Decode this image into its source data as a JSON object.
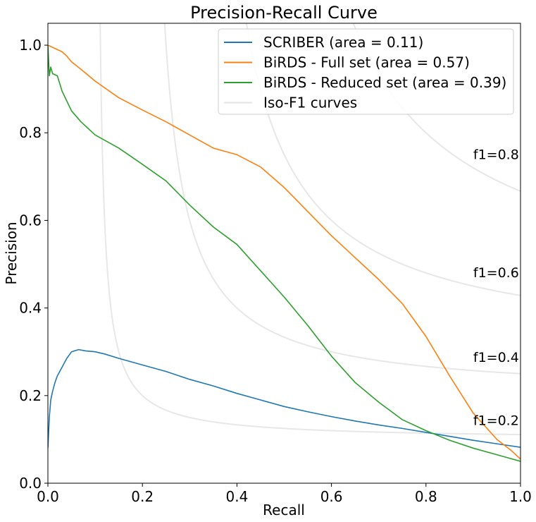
{
  "chart_data": {
    "type": "line",
    "title": "Precision-Recall Curve",
    "xlabel": "Recall",
    "ylabel": "Precision",
    "xlim": [
      0.0,
      1.0
    ],
    "ylim": [
      0.0,
      1.05
    ],
    "x_ticks": [
      "0.0",
      "0.2",
      "0.4",
      "0.6",
      "0.8",
      "1.0"
    ],
    "y_ticks": [
      "0.0",
      "0.2",
      "0.4",
      "0.6",
      "0.8",
      "1.0"
    ],
    "grid": false,
    "legend_position": "upper right",
    "series": [
      {
        "name": "SCRIBER (area = 0.11)",
        "color": "#1f77b4",
        "points": [
          [
            0.0,
            0.08
          ],
          [
            0.003,
            0.15
          ],
          [
            0.006,
            0.19
          ],
          [
            0.01,
            0.21
          ],
          [
            0.015,
            0.23
          ],
          [
            0.02,
            0.245
          ],
          [
            0.03,
            0.265
          ],
          [
            0.04,
            0.285
          ],
          [
            0.05,
            0.3
          ],
          [
            0.065,
            0.305
          ],
          [
            0.08,
            0.302
          ],
          [
            0.1,
            0.3
          ],
          [
            0.12,
            0.295
          ],
          [
            0.15,
            0.285
          ],
          [
            0.2,
            0.27
          ],
          [
            0.25,
            0.255
          ],
          [
            0.3,
            0.237
          ],
          [
            0.35,
            0.222
          ],
          [
            0.4,
            0.205
          ],
          [
            0.45,
            0.19
          ],
          [
            0.5,
            0.175
          ],
          [
            0.55,
            0.163
          ],
          [
            0.6,
            0.152
          ],
          [
            0.65,
            0.142
          ],
          [
            0.7,
            0.133
          ],
          [
            0.75,
            0.125
          ],
          [
            0.8,
            0.116
          ],
          [
            0.85,
            0.107
          ],
          [
            0.9,
            0.098
          ],
          [
            0.95,
            0.09
          ],
          [
            1.0,
            0.082
          ]
        ]
      },
      {
        "name": "BiRDS - Full set (area = 0.57)",
        "color": "#ff7f0e",
        "points": [
          [
            0.0,
            1.0
          ],
          [
            0.01,
            0.995
          ],
          [
            0.02,
            0.99
          ],
          [
            0.03,
            0.985
          ],
          [
            0.04,
            0.975
          ],
          [
            0.05,
            0.962
          ],
          [
            0.07,
            0.945
          ],
          [
            0.1,
            0.918
          ],
          [
            0.15,
            0.88
          ],
          [
            0.2,
            0.852
          ],
          [
            0.25,
            0.825
          ],
          [
            0.3,
            0.795
          ],
          [
            0.35,
            0.765
          ],
          [
            0.4,
            0.75
          ],
          [
            0.45,
            0.722
          ],
          [
            0.5,
            0.675
          ],
          [
            0.55,
            0.62
          ],
          [
            0.6,
            0.565
          ],
          [
            0.65,
            0.515
          ],
          [
            0.7,
            0.465
          ],
          [
            0.75,
            0.41
          ],
          [
            0.8,
            0.335
          ],
          [
            0.85,
            0.245
          ],
          [
            0.9,
            0.16
          ],
          [
            0.95,
            0.1
          ],
          [
            0.98,
            0.075
          ],
          [
            1.0,
            0.055
          ]
        ]
      },
      {
        "name": "BiRDS - Reduced set (area = 0.39)",
        "color": "#2ca02c",
        "points": [
          [
            0.0,
            1.0
          ],
          [
            0.003,
            0.93
          ],
          [
            0.006,
            0.95
          ],
          [
            0.01,
            0.935
          ],
          [
            0.02,
            0.93
          ],
          [
            0.03,
            0.895
          ],
          [
            0.05,
            0.85
          ],
          [
            0.07,
            0.825
          ],
          [
            0.1,
            0.795
          ],
          [
            0.15,
            0.765
          ],
          [
            0.2,
            0.728
          ],
          [
            0.25,
            0.69
          ],
          [
            0.3,
            0.635
          ],
          [
            0.35,
            0.585
          ],
          [
            0.4,
            0.545
          ],
          [
            0.45,
            0.485
          ],
          [
            0.5,
            0.425
          ],
          [
            0.55,
            0.36
          ],
          [
            0.6,
            0.29
          ],
          [
            0.65,
            0.23
          ],
          [
            0.7,
            0.185
          ],
          [
            0.75,
            0.145
          ],
          [
            0.8,
            0.12
          ],
          [
            0.85,
            0.098
          ],
          [
            0.9,
            0.08
          ],
          [
            0.95,
            0.065
          ],
          [
            1.0,
            0.05
          ]
        ]
      },
      {
        "name": "Iso-F1 curves",
        "color": "#d3d3d3"
      }
    ],
    "iso_f1": [
      {
        "f1": 0.2,
        "label": "f1=0.2"
      },
      {
        "f1": 0.4,
        "label": "f1=0.4"
      },
      {
        "f1": 0.6,
        "label": "f1=0.6"
      },
      {
        "f1": 0.8,
        "label": "f1=0.8"
      }
    ]
  }
}
